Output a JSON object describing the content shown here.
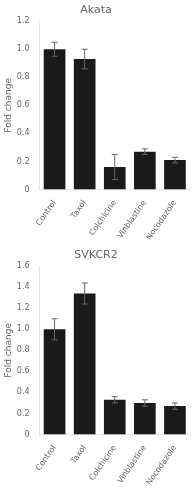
{
  "chart_data": [
    {
      "type": "bar",
      "title": "Akata",
      "categories": [
        "Control",
        "Taxol",
        "Colchicine",
        "Vinblastine",
        "Nocodazole"
      ],
      "values": [
        1.0,
        0.93,
        0.16,
        0.27,
        0.21
      ],
      "errors": [
        0.05,
        0.07,
        0.09,
        0.02,
        0.02
      ],
      "color": "#1a1a1a",
      "ylabel": "Fold change",
      "ylim": [
        0,
        1.2
      ],
      "yticks": [
        0,
        0.2,
        0.4,
        0.6,
        0.8,
        {
          "value": 1.0,
          "label": "1.0"
        },
        1.2
      ],
      "grid": false
    },
    {
      "type": "bar",
      "title": "SVKCR2",
      "categories": [
        "Control",
        "Taxol",
        "Colchicine",
        "Vinblastine",
        "Nocodazole"
      ],
      "values": [
        1.0,
        1.34,
        0.33,
        0.3,
        0.27
      ],
      "errors": [
        0.1,
        0.1,
        0.03,
        0.03,
        0.03
      ],
      "color": "#1a1a1a",
      "ylabel": "Fold change",
      "ylim": [
        0,
        1.6
      ],
      "yticks": [
        0,
        0.2,
        0.4,
        0.6,
        0.8,
        {
          "value": 1.0,
          "label": "1.0"
        },
        1.2,
        1.4,
        1.6
      ],
      "grid": false
    }
  ]
}
